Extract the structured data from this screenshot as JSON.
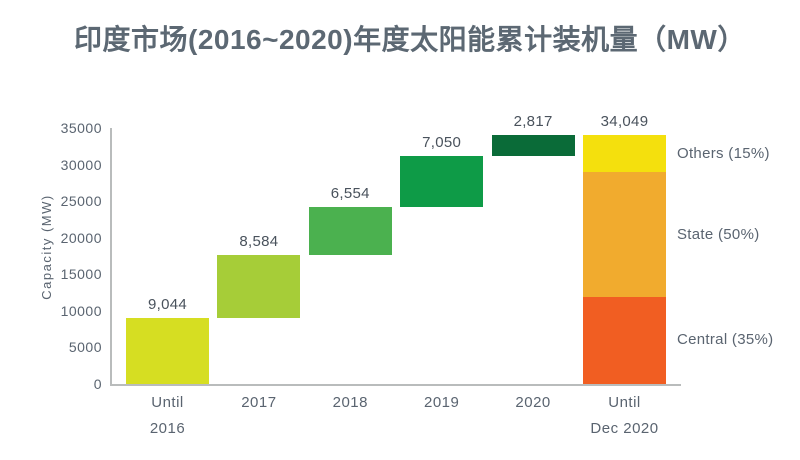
{
  "chart_data": {
    "type": "waterfall",
    "title": "印度市场(2016~2020)年度太阳能累计装机量（MW）",
    "ylabel": "Capacity (MW)",
    "ylim": [
      0,
      35000
    ],
    "yticks": [
      0,
      5000,
      10000,
      15000,
      20000,
      25000,
      30000,
      35000
    ],
    "grid": false,
    "legend_position": "right-of-total-bar",
    "bars": [
      {
        "id": "until-2016",
        "label_lines": [
          "Until",
          "2016"
        ],
        "value": 9044,
        "start": 0,
        "end": 9044,
        "data_label": "9,044",
        "color": "#d6de22"
      },
      {
        "id": "year-2017",
        "label_lines": [
          "2017"
        ],
        "value": 8584,
        "start": 9044,
        "end": 17628,
        "data_label": "8,584",
        "color": "#a6cd38"
      },
      {
        "id": "year-2018",
        "label_lines": [
          "2018"
        ],
        "value": 6554,
        "start": 17628,
        "end": 24182,
        "data_label": "6,554",
        "color": "#4bb14f"
      },
      {
        "id": "year-2019",
        "label_lines": [
          "2019"
        ],
        "value": 7050,
        "start": 24182,
        "end": 31232,
        "data_label": "7,050",
        "color": "#0e9b47"
      },
      {
        "id": "year-2020",
        "label_lines": [
          "2020"
        ],
        "value": 2817,
        "start": 31232,
        "end": 34049,
        "data_label": "2,817",
        "color": "#0a6b38"
      },
      {
        "id": "until-dec-2020",
        "label_lines": [
          "Until",
          "Dec 2020"
        ],
        "total": 34049,
        "data_label": "34,049",
        "segments": [
          {
            "name": "Central (35%)",
            "value": 11917,
            "color": "#f15e22"
          },
          {
            "name": "State (50%)",
            "value": 17025,
            "color": "#f1ab2e"
          },
          {
            "name": "Others (15%)",
            "value": 5107,
            "color": "#f4e00d"
          }
        ]
      }
    ]
  }
}
